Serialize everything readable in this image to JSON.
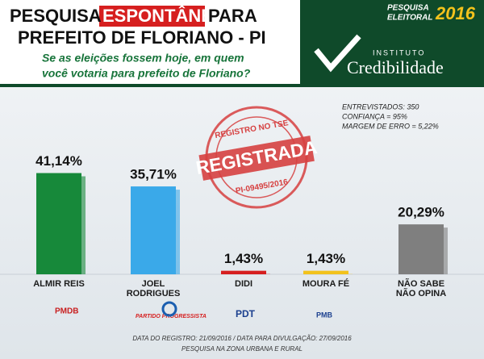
{
  "header": {
    "title_line1": [
      "PESQUISA",
      "ESPONTÂNEA",
      "PARA"
    ],
    "title_line2": "PREFEITO DE FLORIANO - PI",
    "question_line1": "Se as eleições fossem hoje, em quem",
    "question_line2": "você votaria para prefeito de Floriano?",
    "badge_line1": "PESQUISA",
    "badge_line2": "ELEITORAL",
    "badge_year": "2016",
    "institute": "INSTITUTO",
    "institute_name": "Credibilidade"
  },
  "stamp": {
    "top": "REGISTRO NO TSE",
    "main": "REGISTRADA",
    "bottom": "PI-09495/2016"
  },
  "info": [
    "ENTREVISTADOS: 350",
    "CONFIANÇA = 95%",
    "MARGEM DE ERRO = 5,22%"
  ],
  "parties": [
    "PMDB",
    "PARTIDO PROGRESSISTA",
    "PDT",
    "PMB"
  ],
  "footer": [
    "DATA DO REGISTRO: 21/09/2016 / DATA PARA DIVULGAÇÃO: 27/09/2016",
    "PESQUISA NA ZONA URBANA E RURAL"
  ],
  "chart_data": {
    "type": "bar",
    "categories": [
      "ALMIR REIS",
      "JOEL RODRIGUES",
      "DIDI",
      "MOURA FÉ",
      "NÃO SABE NÃO OPINA"
    ],
    "values": [
      41.14,
      35.71,
      1.43,
      1.43,
      20.29
    ],
    "value_labels": [
      "41,14%",
      "35,71%",
      "1,43%",
      "1,43%",
      "20,29%"
    ],
    "colors": [
      "#17893a",
      "#3aa9e9",
      "#d61f1f",
      "#f2c21c",
      "#7f7f7f"
    ]
  }
}
